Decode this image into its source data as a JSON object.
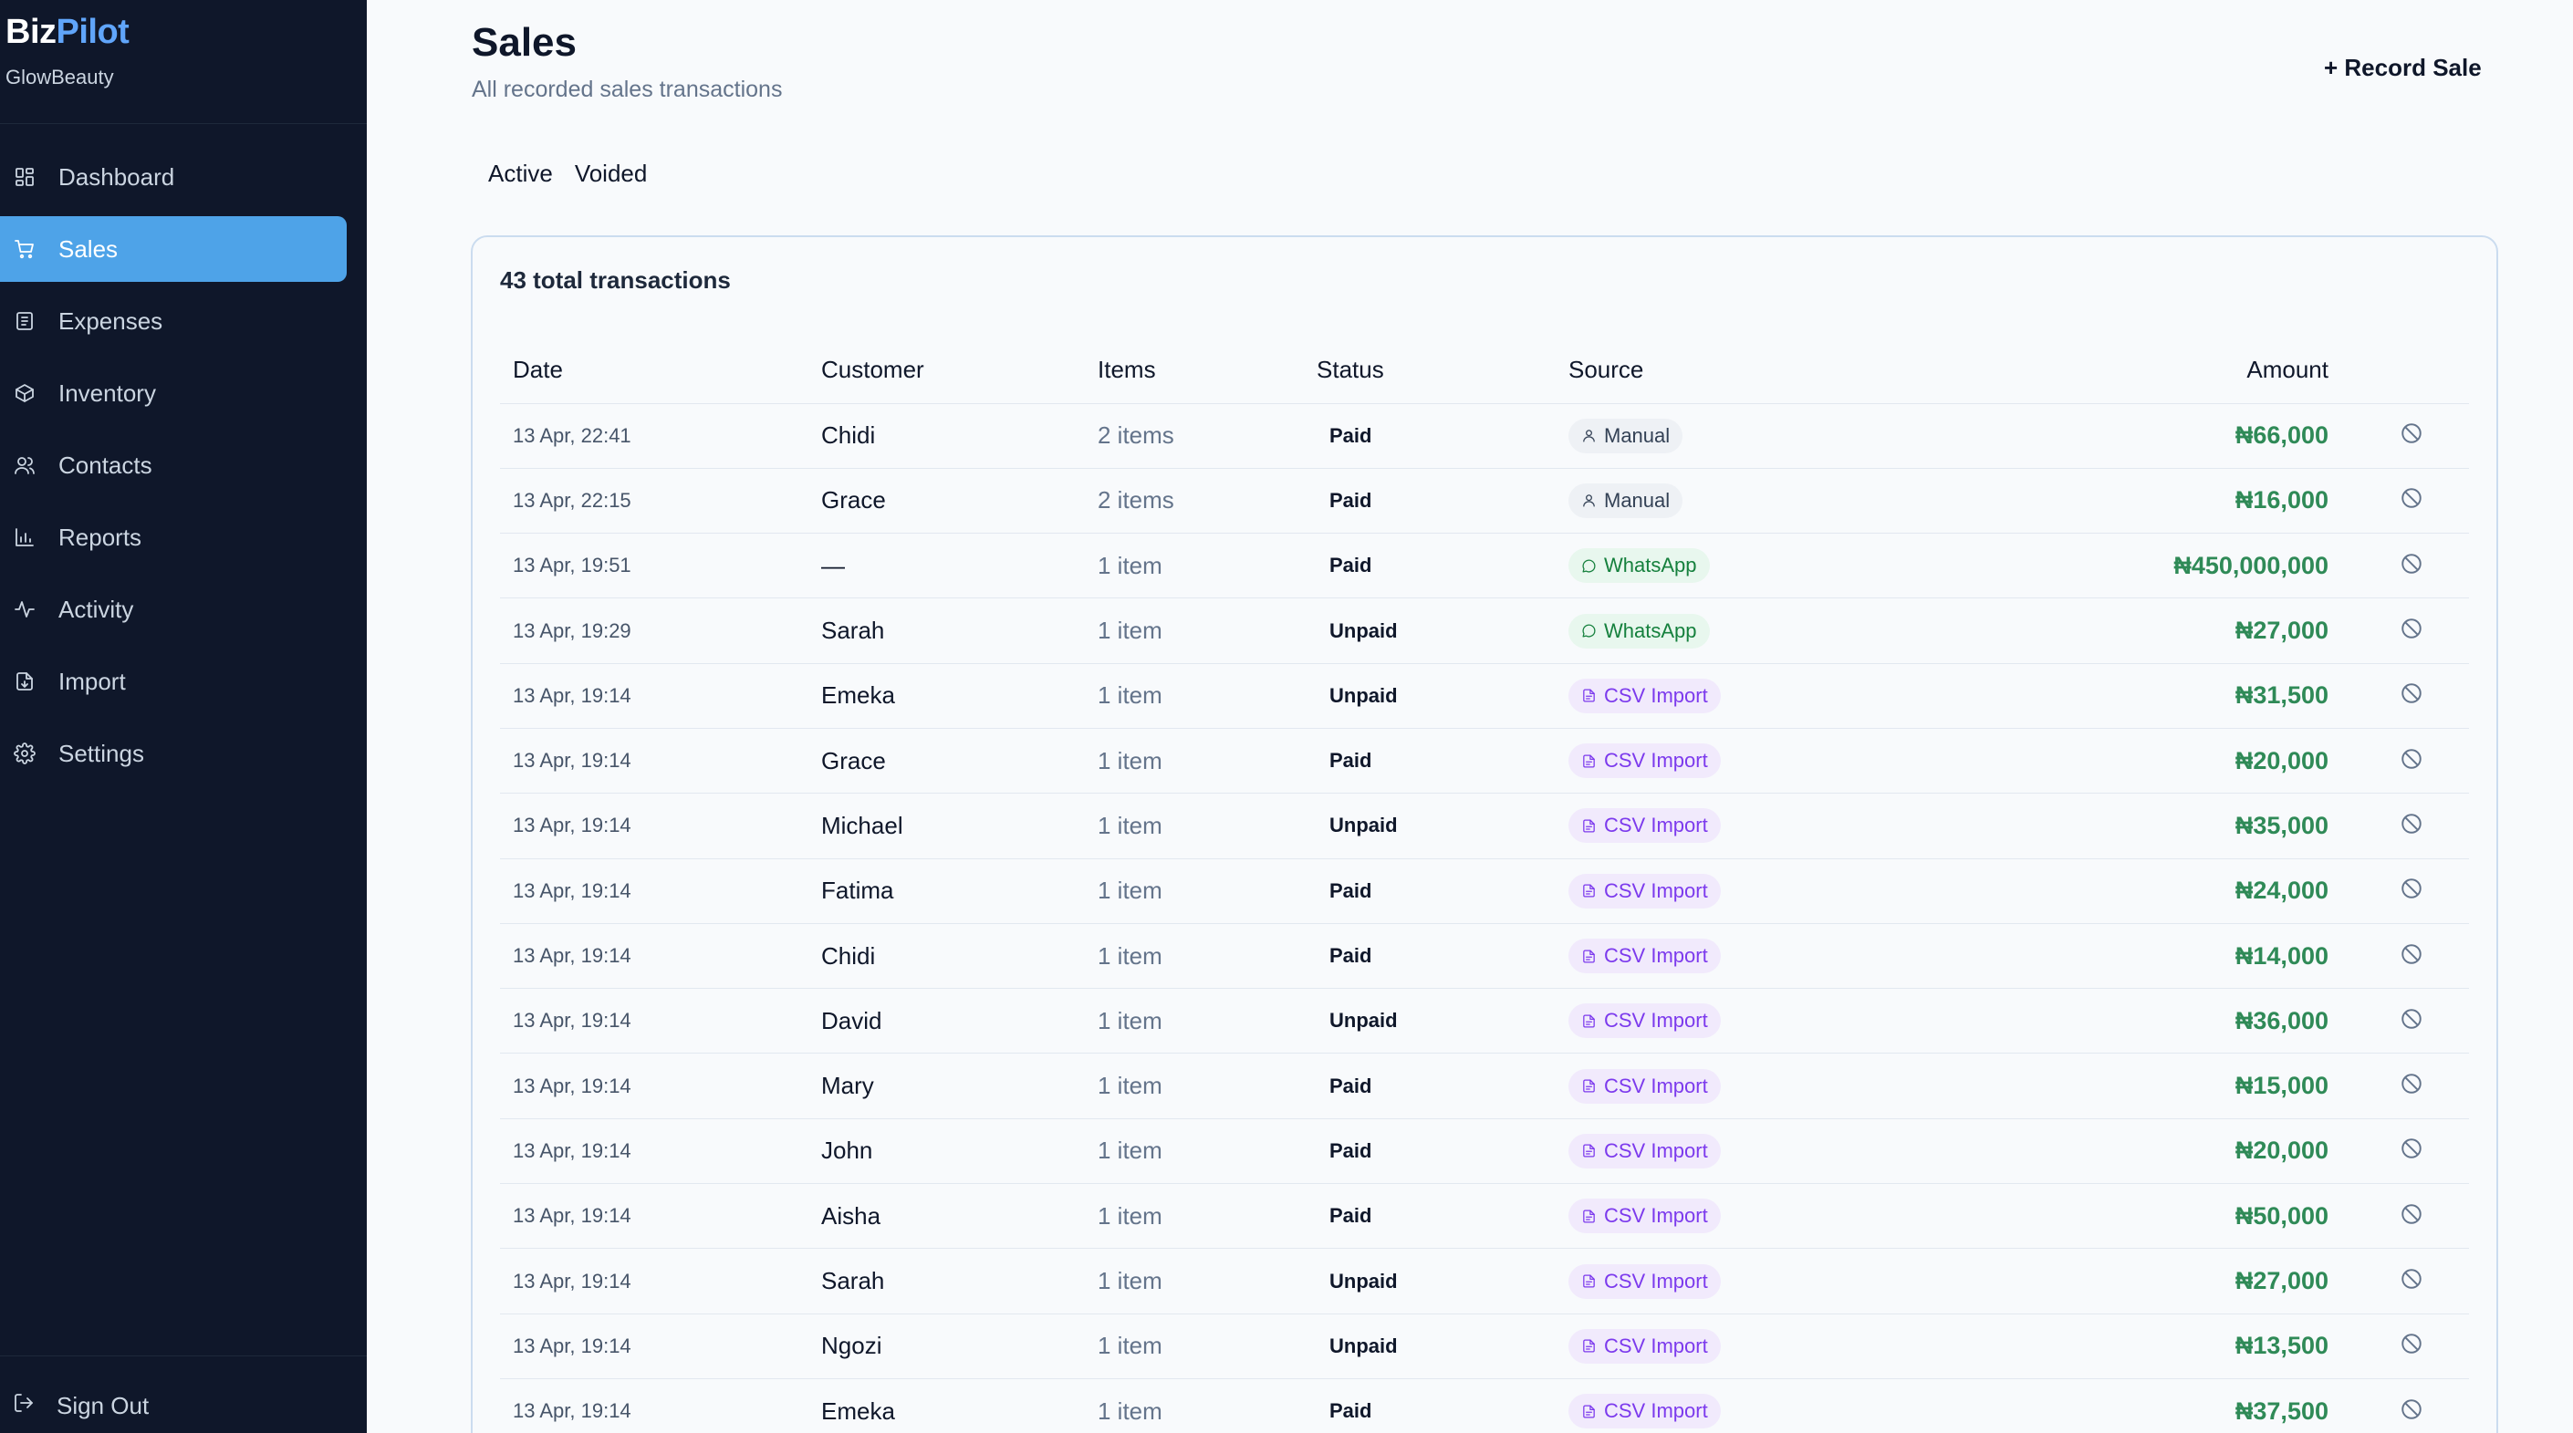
{
  "brand": {
    "prefix": "Biz",
    "accent": "Pilot",
    "accent_color": "#60a5fa"
  },
  "org_name": "GlowBeauty",
  "nav": [
    {
      "label": "Dashboard",
      "icon": "dashboard-icon",
      "active": false
    },
    {
      "label": "Sales",
      "icon": "cart-icon",
      "active": true
    },
    {
      "label": "Expenses",
      "icon": "receipt-icon",
      "active": false
    },
    {
      "label": "Inventory",
      "icon": "box-icon",
      "active": false
    },
    {
      "label": "Contacts",
      "icon": "users-icon",
      "active": false
    },
    {
      "label": "Reports",
      "icon": "bar-chart-icon",
      "active": false
    },
    {
      "label": "Activity",
      "icon": "activity-icon",
      "active": false
    },
    {
      "label": "Import",
      "icon": "file-import-icon",
      "active": false
    },
    {
      "label": "Settings",
      "icon": "gear-icon",
      "active": false
    }
  ],
  "signout_label": "Sign Out",
  "header": {
    "title": "Sales",
    "subtitle": "All recorded sales transactions",
    "record_label": "+ Record Sale"
  },
  "tabs": [
    {
      "label": "Active",
      "active": true
    },
    {
      "label": "Voided",
      "active": false
    }
  ],
  "table": {
    "count_label": "43 total transactions",
    "columns": {
      "date": "Date",
      "customer": "Customer",
      "items": "Items",
      "status": "Status",
      "source": "Source",
      "amount": "Amount"
    },
    "rows": [
      {
        "date": "13 Apr, 22:41",
        "customer": "Chidi",
        "items": "2 items",
        "status": "Paid",
        "source": "Manual",
        "source_type": "manual",
        "amount": "₦66,000"
      },
      {
        "date": "13 Apr, 22:15",
        "customer": "Grace",
        "items": "2 items",
        "status": "Paid",
        "source": "Manual",
        "source_type": "manual",
        "amount": "₦16,000"
      },
      {
        "date": "13 Apr, 19:51",
        "customer": "—",
        "items": "1 item",
        "status": "Paid",
        "source": "WhatsApp",
        "source_type": "whatsapp",
        "amount": "₦450,000,000"
      },
      {
        "date": "13 Apr, 19:29",
        "customer": "Sarah",
        "items": "1 item",
        "status": "Unpaid",
        "source": "WhatsApp",
        "source_type": "whatsapp",
        "amount": "₦27,000"
      },
      {
        "date": "13 Apr, 19:14",
        "customer": "Emeka",
        "items": "1 item",
        "status": "Unpaid",
        "source": "CSV Import",
        "source_type": "csv",
        "amount": "₦31,500"
      },
      {
        "date": "13 Apr, 19:14",
        "customer": "Grace",
        "items": "1 item",
        "status": "Paid",
        "source": "CSV Import",
        "source_type": "csv",
        "amount": "₦20,000"
      },
      {
        "date": "13 Apr, 19:14",
        "customer": "Michael",
        "items": "1 item",
        "status": "Unpaid",
        "source": "CSV Import",
        "source_type": "csv",
        "amount": "₦35,000"
      },
      {
        "date": "13 Apr, 19:14",
        "customer": "Fatima",
        "items": "1 item",
        "status": "Paid",
        "source": "CSV Import",
        "source_type": "csv",
        "amount": "₦24,000"
      },
      {
        "date": "13 Apr, 19:14",
        "customer": "Chidi",
        "items": "1 item",
        "status": "Paid",
        "source": "CSV Import",
        "source_type": "csv",
        "amount": "₦14,000"
      },
      {
        "date": "13 Apr, 19:14",
        "customer": "David",
        "items": "1 item",
        "status": "Unpaid",
        "source": "CSV Import",
        "source_type": "csv",
        "amount": "₦36,000"
      },
      {
        "date": "13 Apr, 19:14",
        "customer": "Mary",
        "items": "1 item",
        "status": "Paid",
        "source": "CSV Import",
        "source_type": "csv",
        "amount": "₦15,000"
      },
      {
        "date": "13 Apr, 19:14",
        "customer": "John",
        "items": "1 item",
        "status": "Paid",
        "source": "CSV Import",
        "source_type": "csv",
        "amount": "₦20,000"
      },
      {
        "date": "13 Apr, 19:14",
        "customer": "Aisha",
        "items": "1 item",
        "status": "Paid",
        "source": "CSV Import",
        "source_type": "csv",
        "amount": "₦50,000"
      },
      {
        "date": "13 Apr, 19:14",
        "customer": "Sarah",
        "items": "1 item",
        "status": "Unpaid",
        "source": "CSV Import",
        "source_type": "csv",
        "amount": "₦27,000"
      },
      {
        "date": "13 Apr, 19:14",
        "customer": "Ngozi",
        "items": "1 item",
        "status": "Unpaid",
        "source": "CSV Import",
        "source_type": "csv",
        "amount": "₦13,500"
      },
      {
        "date": "13 Apr, 19:14",
        "customer": "Emeka",
        "items": "1 item",
        "status": "Paid",
        "source": "CSV Import",
        "source_type": "csv",
        "amount": "₦37,500"
      }
    ]
  },
  "colors": {
    "sidebar_bg": "#0f172a",
    "active_nav": "#4ea3e8",
    "amount_green": "#2f8a57",
    "whatsapp_green": "#15803d",
    "csv_purple": "#7c3aed"
  }
}
